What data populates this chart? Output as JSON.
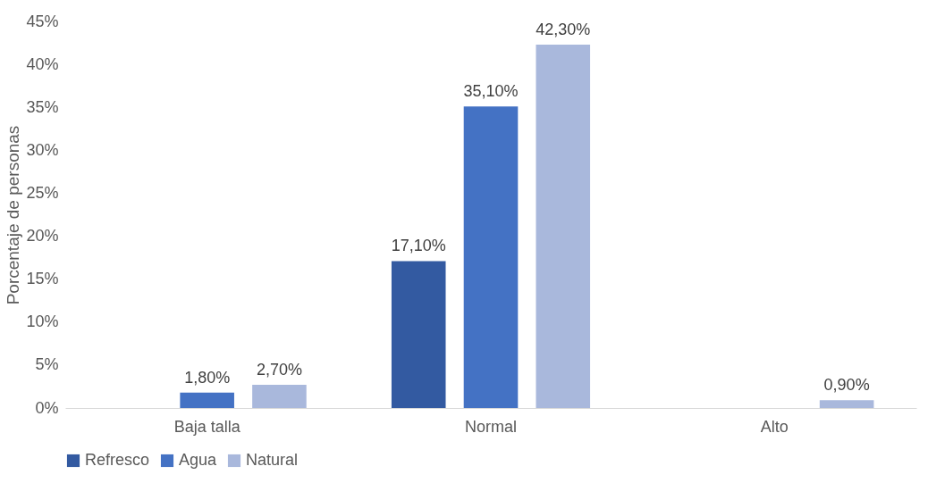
{
  "chart_data": {
    "type": "bar",
    "ylabel": "Porcentaje de personas",
    "categories": [
      "Baja talla",
      "Normal",
      "Alto"
    ],
    "series": [
      {
        "name": "Refresco",
        "color": "#335aa1",
        "values": [
          null,
          17.1,
          null
        ],
        "value_labels": [
          null,
          "17,10%",
          null
        ]
      },
      {
        "name": "Agua",
        "color": "#4472c4",
        "values": [
          1.8,
          35.1,
          null
        ],
        "value_labels": [
          "1,80%",
          "35,10%",
          null
        ]
      },
      {
        "name": "Natural",
        "color": "#a9b8dc",
        "values": [
          2.7,
          42.3,
          0.9
        ],
        "value_labels": [
          "2,70%",
          "42,30%",
          "0,90%"
        ]
      }
    ],
    "ylim": [
      0,
      45
    ],
    "yticks": [
      {
        "value": 0,
        "label": "0%"
      },
      {
        "value": 5,
        "label": "5%"
      },
      {
        "value": 10,
        "label": "10%"
      },
      {
        "value": 15,
        "label": "15%"
      },
      {
        "value": 20,
        "label": "20%"
      },
      {
        "value": 25,
        "label": "25%"
      },
      {
        "value": 30,
        "label": "30%"
      },
      {
        "value": 35,
        "label": "35%"
      },
      {
        "value": 40,
        "label": "40%"
      },
      {
        "value": 45,
        "label": "45%"
      }
    ],
    "grid": false,
    "legend": "bottom"
  }
}
